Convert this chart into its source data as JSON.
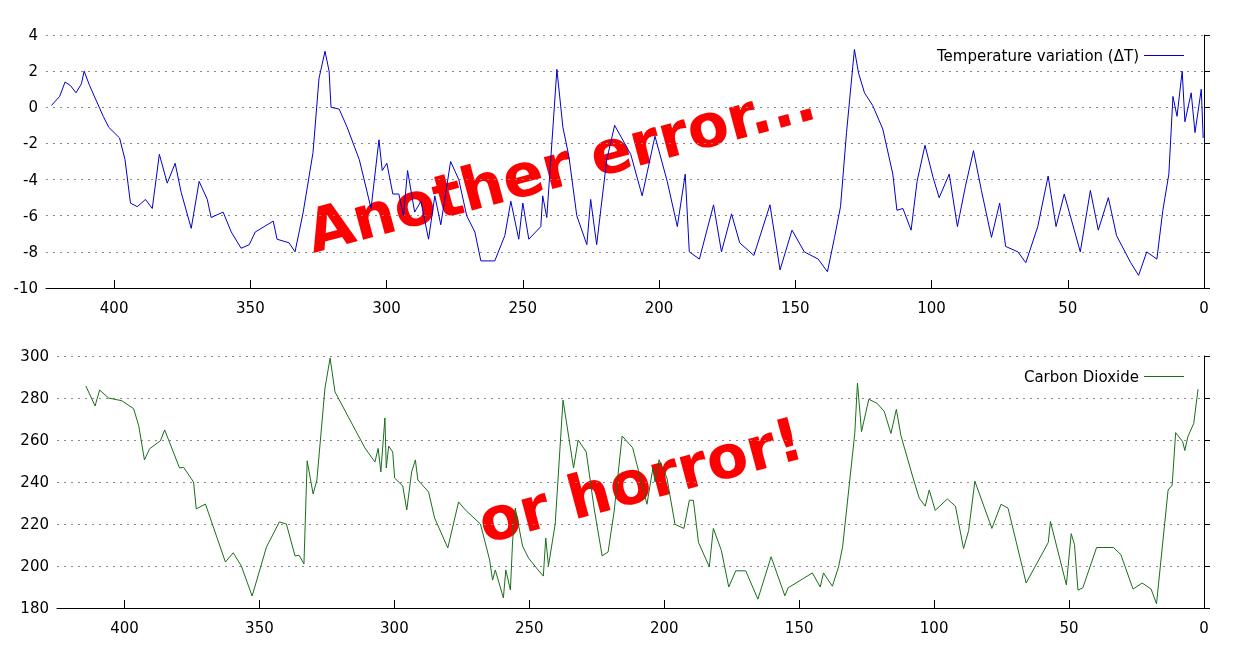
{
  "chart_data": [
    {
      "type": "line",
      "xlim": [
        425,
        0
      ],
      "xticks": [
        400,
        350,
        300,
        250,
        200,
        150,
        100,
        50,
        0
      ],
      "ylim": [
        -10,
        4
      ],
      "yticks": [
        -10,
        -8,
        -6,
        -4,
        -2,
        0,
        2,
        4
      ],
      "grid": "y",
      "legend": "top right",
      "marker": "none",
      "line_style": "solid",
      "annotations": [
        "Another error...",
        "or horror!"
      ],
      "series": [
        {
          "name": "Temperature variation (ΔT)",
          "color": "#0000cc",
          "x": [
            423,
            420,
            418,
            416,
            414,
            412,
            411,
            409,
            404,
            402,
            398,
            396,
            394,
            391.5,
            388.5,
            386,
            383.4,
            380.5,
            377.6,
            375.4,
            371.7,
            368.8,
            365.8,
            364.4,
            360,
            357,
            353.4,
            350.4,
            348.2,
            341.6,
            340.2,
            335.8,
            333.6,
            330.6,
            327,
            324.8,
            322.6,
            321.1,
            320.4,
            317.4,
            314.5,
            310,
            305.7,
            302.8,
            301.6,
            299.9,
            297.7,
            295.5,
            293.8,
            292.3,
            289.7,
            287.4,
            284.6,
            282.3,
            280.1,
            276.5,
            273.5,
            270.6,
            267.6,
            265.4,
            260.3,
            256.6,
            254.4,
            251.5,
            250,
            247.8,
            243.4,
            242.7,
            241.2,
            237.5,
            235.3,
            233.1,
            230.2,
            226.5,
            225.1,
            222.9,
            219.2,
            216.3,
            210.4,
            206.2,
            201.5,
            197,
            193.3,
            190.4,
            188.9,
            185.2,
            180,
            177.1,
            173.4,
            170.4,
            165.2,
            159.3,
            155.6,
            151.2,
            146.7,
            141.6,
            138.2,
            135.6,
            133.4,
            131.2,
            128.3,
            126.8,
            124.6,
            121.6,
            117.9,
            114.2,
            112.7,
            110.5,
            107.5,
            105.3,
            102.4,
            99.4,
            97.2,
            93.5,
            90.5,
            87.6,
            84.6,
            81.7,
            78,
            75,
            72.8,
            68.3,
            65.4,
            61,
            57.2,
            54.3,
            51.3,
            45.4,
            41.7,
            38.8,
            35.1,
            32.1,
            26.9,
            24,
            21,
            17.3,
            15.1,
            12.9,
            11.4,
            9.9,
            8,
            7,
            4.7,
            3.3,
            1,
            0.3
          ],
          "values": [
            0.1,
            0.6,
            1.4,
            1.2,
            0.8,
            1.3,
            2.0,
            1.2,
            -0.5,
            -1.1,
            -1.7,
            -2.9,
            -5.3,
            -5.5,
            -5.1,
            -5.6,
            -2.6,
            -4.2,
            -3.1,
            -4.7,
            -6.7,
            -4.1,
            -5.1,
            -6.1,
            -5.8,
            -6.9,
            -7.8,
            -7.6,
            -6.9,
            -6.3,
            -7.3,
            -7.5,
            -8.0,
            -5.8,
            -2.5,
            1.6,
            3.1,
            2.0,
            0.0,
            -0.1,
            -1.1,
            -2.9,
            -5.6,
            -1.8,
            -3.5,
            -3.1,
            -4.8,
            -4.8,
            -6.0,
            -3.5,
            -5.8,
            -5.2,
            -7.3,
            -4.9,
            -6.5,
            -3.0,
            -4.0,
            -6.0,
            -6.9,
            -8.5,
            -8.5,
            -7.1,
            -5.2,
            -7.3,
            -5.3,
            -7.3,
            -6.6,
            -4.9,
            -6.1,
            2.1,
            -1.1,
            -2.7,
            -6.0,
            -7.6,
            -5.1,
            -7.6,
            -2.9,
            -1.0,
            -2.6,
            -4.9,
            -1.6,
            -4.1,
            -6.6,
            -3.7,
            -8.0,
            -8.4,
            -5.4,
            -8.0,
            -5.9,
            -7.5,
            -8.2,
            -5.4,
            -9.0,
            -6.8,
            -8.0,
            -8.4,
            -9.1,
            -7.2,
            -5.5,
            -1.4,
            3.2,
            1.9,
            0.8,
            0.1,
            -1.2,
            -3.7,
            -5.7,
            -5.6,
            -6.8,
            -4.1,
            -2.1,
            -3.9,
            -5.0,
            -3.7,
            -6.6,
            -4.4,
            -2.4,
            -4.6,
            -7.2,
            -5.3,
            -7.7,
            -8.0,
            -8.6,
            -6.6,
            -3.8,
            -6.6,
            -4.8,
            -8.0,
            -4.6,
            -6.8,
            -5.0,
            -7.1,
            -8.6,
            -9.3,
            -8.0,
            -8.4,
            -5.7,
            -3.7,
            0.6,
            -0.5,
            2.0,
            -0.8,
            0.8,
            -1.4,
            1.0,
            -1.7
          ]
        }
      ]
    },
    {
      "type": "line",
      "xlim": [
        425,
        0
      ],
      "xticks": [
        400,
        350,
        300,
        250,
        200,
        150,
        100,
        50,
        0
      ],
      "ylim": [
        180,
        300
      ],
      "yticks": [
        180,
        200,
        220,
        240,
        260,
        280,
        300
      ],
      "grid": "y",
      "legend": "top right",
      "marker": "none",
      "line_style": "solid",
      "series": [
        {
          "name": "Carbon Dioxide",
          "color": "#1a6e1a",
          "x": [
            414.3,
            410.9,
            409.2,
            405.9,
            401,
            396.6,
            394.7,
            392.6,
            390.7,
            386.7,
            385.1,
            379.6,
            378.1,
            374.4,
            373.4,
            370,
            362.6,
            359.7,
            356.7,
            352.7,
            347.4,
            342.6,
            340,
            336.8,
            335.3,
            333.5,
            332.3,
            330.1,
            328.7,
            325.7,
            323.8,
            322,
            310.9,
            307.2,
            306,
            305,
            303.5,
            303,
            302.1,
            300.6,
            299.9,
            296.9,
            295.4,
            293.6,
            292.2,
            291.3,
            287.3,
            285.1,
            280.2,
            276.2,
            273.7,
            268.1,
            264.7,
            263.6,
            262.6,
            259.6,
            258.7,
            257,
            256.2,
            255.2,
            252.5,
            250.3,
            247.3,
            244.8,
            243.9,
            242.9,
            240.4,
            237.5,
            233.6,
            231.9,
            228.9,
            226,
            223,
            220.8,
            218.6,
            215.6,
            211.7,
            206.4,
            204.2,
            203.4,
            201.9,
            199,
            196,
            192.7,
            190.7,
            189.2,
            187.3,
            183.3,
            181.8,
            178.8,
            176.1,
            173.5,
            169.8,
            165.3,
            160.4,
            155.3,
            154.1,
            145.1,
            142.2,
            141,
            137.7,
            135.4,
            133.9,
            129.4,
            128.4,
            126.9,
            124.2,
            121.2,
            118.5,
            116,
            114,
            112.3,
            107.8,
            105.5,
            103.3,
            101.8,
            99.6,
            95.1,
            92.1,
            89.1,
            87.2,
            84.9,
            78.6,
            75.2,
            72.6,
            65.9,
            57.7,
            56.9,
            51,
            49.2,
            48,
            46.7,
            44.9,
            39.8,
            33.5,
            30.8,
            26.3,
            22.9,
            19.6,
            17.6,
            13.3,
            11.8,
            10.5,
            7.9,
            7.1,
            6,
            3.8,
            2.2
          ],
          "values": [
            285.7,
            276.2,
            283.8,
            280,
            278.7,
            274.9,
            266.7,
            250.5,
            255.8,
            259.6,
            264.8,
            246.7,
            247,
            240,
            227.2,
            229.5,
            201.9,
            206.3,
            200,
            185.7,
            209,
            221,
            220,
            204.8,
            205.1,
            201,
            250.1,
            234.3,
            241,
            284.8,
            299,
            282.9,
            256.2,
            249.5,
            256,
            244.8,
            270.5,
            246.7,
            257.1,
            254.3,
            241.9,
            238.1,
            226.7,
            244.8,
            250.5,
            241,
            235.2,
            222.9,
            208.6,
            230.5,
            226.7,
            220,
            202.9,
            193.3,
            198.1,
            184.8,
            198.1,
            188.6,
            211.4,
            227.6,
            209.5,
            203.8,
            199,
            195.2,
            213.3,
            200,
            220,
            279,
            246.7,
            260,
            254.3,
            227.6,
            204.8,
            206.7,
            225.7,
            261.9,
            256.3,
            229.4,
            246.7,
            240,
            250.6,
            241.9,
            219.8,
            217.9,
            231.3,
            231.3,
            211.2,
            199.6,
            217.9,
            207.3,
            190,
            197.7,
            197.7,
            184.2,
            204.4,
            185.8,
            189.6,
            196.7,
            190,
            196.7,
            190.4,
            199.6,
            209.2,
            263.1,
            287.1,
            264,
            279.4,
            277.5,
            273.7,
            263.1,
            274.6,
            262.1,
            241.9,
            232.3,
            228.5,
            236.2,
            226.5,
            231.9,
            228.5,
            208.3,
            216.9,
            240.4,
            217.9,
            229.4,
            227.5,
            191.9,
            211.2,
            221.2,
            191,
            215.4,
            210.2,
            188.5,
            189.6,
            208.8,
            208.8,
            205.4,
            189,
            191.9,
            189,
            182,
            236.2,
            238.5,
            263.5,
            259.2,
            255,
            261.5,
            267.9,
            284.2
          ]
        }
      ]
    }
  ]
}
